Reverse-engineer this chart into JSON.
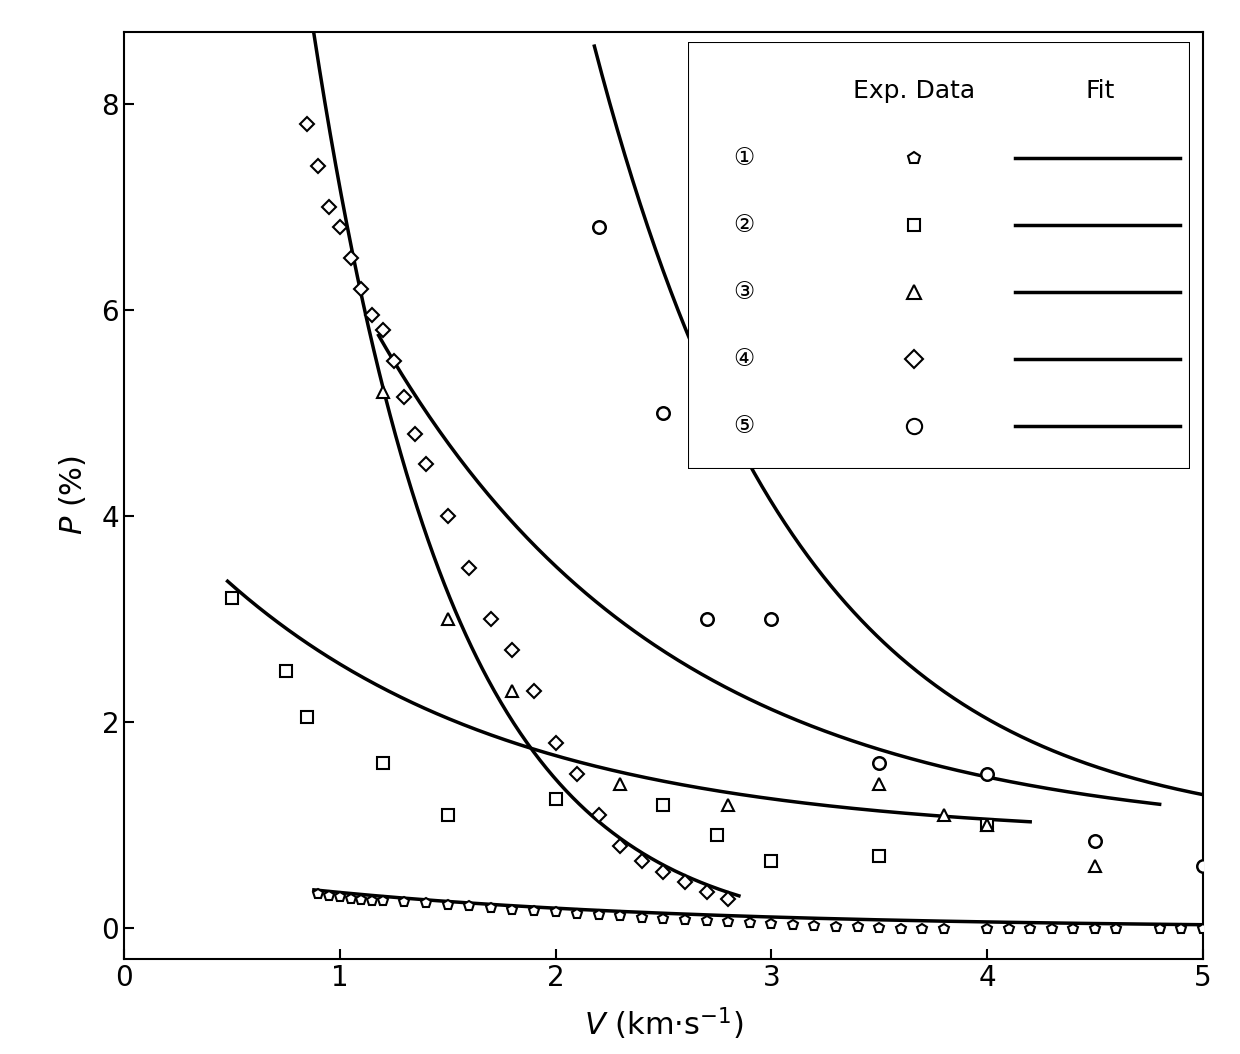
{
  "xlim": [
    0,
    5
  ],
  "ylim": [
    -0.3,
    8.7
  ],
  "xticks": [
    0,
    1,
    2,
    3,
    4,
    5
  ],
  "yticks": [
    0,
    2,
    4,
    6,
    8
  ],
  "s1_x": [
    0.9,
    0.95,
    1.0,
    1.05,
    1.1,
    1.15,
    1.2,
    1.3,
    1.4,
    1.5,
    1.6,
    1.7,
    1.8,
    1.9,
    2.0,
    2.1,
    2.2,
    2.3,
    2.4,
    2.5,
    2.6,
    2.7,
    2.8,
    2.9,
    3.0,
    3.1,
    3.2,
    3.3,
    3.4,
    3.5,
    3.6,
    3.7,
    3.8,
    4.0,
    4.1,
    4.2,
    4.3,
    4.4,
    4.5,
    4.6,
    4.8,
    4.9,
    5.0
  ],
  "s1_y": [
    0.33,
    0.31,
    0.3,
    0.28,
    0.27,
    0.26,
    0.26,
    0.25,
    0.24,
    0.23,
    0.22,
    0.2,
    0.18,
    0.17,
    0.16,
    0.14,
    0.13,
    0.12,
    0.1,
    0.09,
    0.08,
    0.07,
    0.06,
    0.05,
    0.04,
    0.03,
    0.02,
    0.01,
    0.01,
    0.0,
    -0.01,
    -0.01,
    -0.01,
    -0.01,
    -0.01,
    -0.01,
    -0.01,
    -0.01,
    -0.01,
    -0.01,
    -0.01,
    -0.01,
    -0.01
  ],
  "s2_x": [
    0.5,
    0.75,
    0.85,
    1.2,
    1.5,
    2.0,
    2.5,
    2.75,
    3.0,
    3.5,
    4.0
  ],
  "s2_y": [
    3.2,
    2.5,
    2.05,
    1.6,
    1.1,
    1.25,
    1.2,
    0.9,
    0.65,
    0.7,
    1.0
  ],
  "s3_x": [
    1.2,
    1.5,
    1.8,
    2.3,
    2.8,
    3.5,
    3.8,
    4.0,
    4.5
  ],
  "s3_y": [
    5.2,
    3.0,
    2.3,
    1.4,
    1.2,
    1.4,
    1.1,
    1.0,
    0.6
  ],
  "s4_x": [
    0.85,
    0.9,
    0.95,
    1.0,
    1.05,
    1.1,
    1.15,
    1.2,
    1.25,
    1.3,
    1.35,
    1.4,
    1.5,
    1.6,
    1.7,
    1.8,
    1.9,
    2.0,
    2.1,
    2.2,
    2.3,
    2.4,
    2.5,
    2.6,
    2.7,
    2.8
  ],
  "s4_y": [
    7.8,
    7.4,
    7.0,
    6.8,
    6.5,
    6.2,
    5.95,
    5.8,
    5.5,
    5.15,
    4.8,
    4.5,
    4.0,
    3.5,
    3.0,
    2.7,
    2.3,
    1.8,
    1.5,
    1.1,
    0.8,
    0.65,
    0.55,
    0.45,
    0.35,
    0.28
  ],
  "s5_x": [
    2.2,
    2.5,
    2.7,
    3.0,
    3.5,
    4.0,
    4.5,
    5.0
  ],
  "s5_y": [
    6.8,
    5.0,
    3.0,
    3.0,
    1.6,
    1.5,
    0.85,
    0.6
  ],
  "linewidth": 2.5,
  "markersize": 8,
  "background_color": "#ffffff"
}
